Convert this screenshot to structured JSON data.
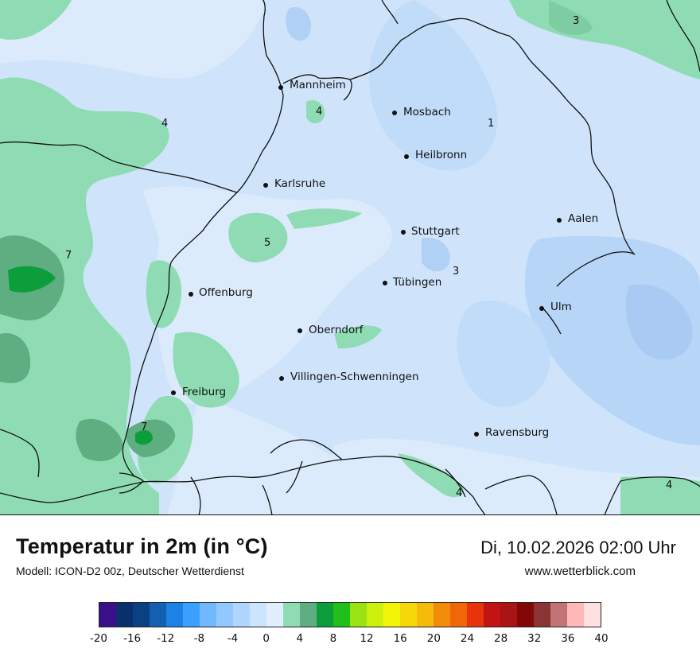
{
  "title": "Temperatur in 2m (in °C)",
  "model": "Modell: ICON-D2 00z, Deutscher Wetterdienst",
  "datetime": "Di, 10.02.2026 02:00 Uhr",
  "source": "www.wetterblick.com",
  "cities": [
    "Mannheim",
    "Mosbach",
    "Heilbronn",
    "Karlsruhe",
    "Aalen",
    "Stuttgart",
    "Offenburg",
    "Tübingen",
    "Ulm",
    "Oberndorf",
    "Villingen-Schwenningen",
    "Freiburg",
    "Ravensburg"
  ],
  "map_values": [
    "3",
    "4",
    "4",
    "1",
    "5",
    "7",
    "3",
    "7",
    "4",
    "4"
  ],
  "colorbar": {
    "colors": [
      "#3b0f8a",
      "#08306b",
      "#0b4183",
      "#1460b0",
      "#1c82e8",
      "#3ba0ff",
      "#70b8ff",
      "#91c8ff",
      "#b0d6ff",
      "#cde4ff",
      "#e0eefe",
      "#8fdcb4",
      "#5fae82",
      "#0c9e3a",
      "#21bf1a",
      "#9be212",
      "#cdf00c",
      "#f2f505",
      "#f5d70a",
      "#f5ba0a",
      "#f28a0a",
      "#f2660a",
      "#e8340a",
      "#c21414",
      "#aa1414",
      "#820808",
      "#8c3434",
      "#c27474",
      "#ffb8b8",
      "#ffe0e0"
    ],
    "ticks": [
      "-20",
      "-16",
      "-12",
      "-8",
      "-4",
      "0",
      "4",
      "8",
      "12",
      "16",
      "20",
      "24",
      "28",
      "32",
      "36",
      "40"
    ]
  }
}
